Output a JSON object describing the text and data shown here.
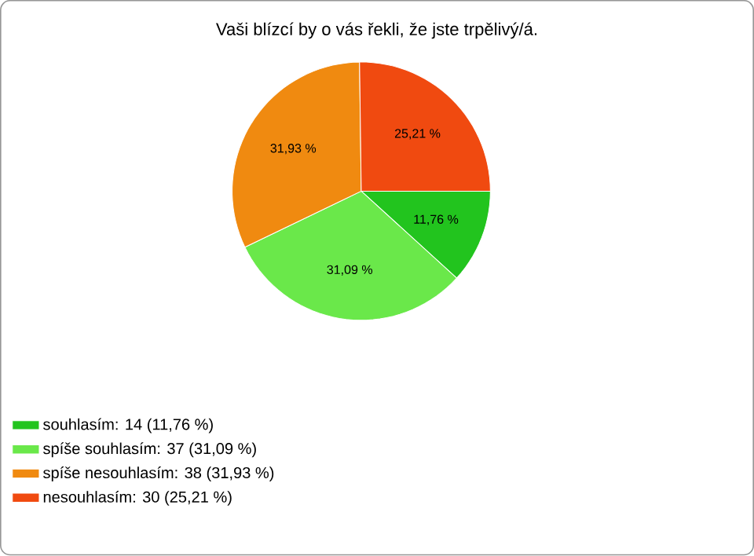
{
  "chart_data": {
    "type": "pie",
    "title": "Vaši blízcí by o vás řekli, že jste trpělivý/á.",
    "categories": [
      "souhlasím: 14 (11,76 %)",
      "spíše souhlasím: 37 (31,09 %)",
      "spíše nesouhlasím: 38 (31,93 %)",
      "nesouhlasím: 30 (25,21 %)"
    ],
    "values": [
      11.76,
      31.09,
      31.93,
      25.21
    ],
    "value_labels": [
      "11,76 %",
      "31,09 %",
      "31,93 %",
      "25,21 %"
    ],
    "colors": [
      "#22c41e",
      "#6ae84a",
      "#f08a10",
      "#f04a10"
    ],
    "legend": "bottom left"
  }
}
